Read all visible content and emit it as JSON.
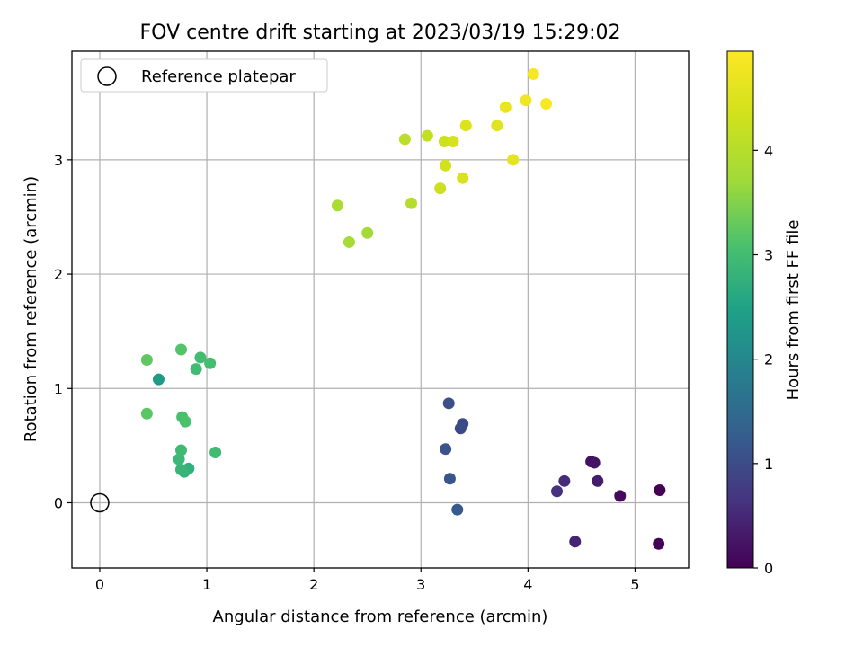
{
  "chart_data": {
    "type": "scatter",
    "title": "FOV centre drift starting at 2023/03/19 15:29:02",
    "xlabel": "Angular distance from reference (arcmin)",
    "ylabel": "Rotation from reference (arcmin)",
    "xlim": [
      -0.26,
      5.5
    ],
    "ylim": [
      -0.57,
      3.95
    ],
    "xticks": [
      0,
      1,
      2,
      3,
      4,
      5
    ],
    "yticks": [
      0,
      1,
      2,
      3
    ],
    "grid": true,
    "legend": {
      "position": "top-left",
      "entries": [
        "Reference platepar"
      ]
    },
    "reference_point": {
      "x": 0,
      "y": 0
    },
    "colorbar": {
      "label": "Hours from first FF file",
      "colormap": "viridis",
      "range": [
        0,
        4.95
      ],
      "ticks": [
        0,
        1,
        2,
        3,
        4
      ]
    },
    "points": [
      {
        "x": 5.23,
        "y": 0.11,
        "h": 0.0
      },
      {
        "x": 5.22,
        "y": -0.36,
        "h": 0.05
      },
      {
        "x": 4.86,
        "y": 0.06,
        "h": 0.12
      },
      {
        "x": 4.59,
        "y": 0.36,
        "h": 0.2
      },
      {
        "x": 4.62,
        "y": 0.35,
        "h": 0.25
      },
      {
        "x": 4.65,
        "y": 0.19,
        "h": 0.35
      },
      {
        "x": 4.44,
        "y": -0.34,
        "h": 0.45
      },
      {
        "x": 4.34,
        "y": 0.19,
        "h": 0.55
      },
      {
        "x": 4.27,
        "y": 0.1,
        "h": 0.62
      },
      {
        "x": 3.37,
        "y": 0.65,
        "h": 0.95
      },
      {
        "x": 3.39,
        "y": 0.69,
        "h": 1.0
      },
      {
        "x": 3.26,
        "y": 0.87,
        "h": 1.05
      },
      {
        "x": 3.23,
        "y": 0.47,
        "h": 1.1
      },
      {
        "x": 3.27,
        "y": 0.21,
        "h": 1.15
      },
      {
        "x": 3.34,
        "y": -0.06,
        "h": 1.2
      },
      {
        "x": 0.55,
        "y": 1.08,
        "h": 2.35
      },
      {
        "x": 0.83,
        "y": 0.3,
        "h": 2.75
      },
      {
        "x": 0.79,
        "y": 0.27,
        "h": 2.8
      },
      {
        "x": 0.76,
        "y": 0.29,
        "h": 2.85
      },
      {
        "x": 0.74,
        "y": 0.38,
        "h": 2.9
      },
      {
        "x": 0.76,
        "y": 0.46,
        "h": 2.95
      },
      {
        "x": 1.08,
        "y": 0.44,
        "h": 2.97
      },
      {
        "x": 0.9,
        "y": 1.17,
        "h": 2.98
      },
      {
        "x": 0.94,
        "y": 1.27,
        "h": 3.0
      },
      {
        "x": 1.03,
        "y": 1.22,
        "h": 3.02
      },
      {
        "x": 0.77,
        "y": 0.75,
        "h": 3.05
      },
      {
        "x": 0.8,
        "y": 0.71,
        "h": 3.1
      },
      {
        "x": 0.76,
        "y": 1.34,
        "h": 3.15
      },
      {
        "x": 0.44,
        "y": 0.78,
        "h": 3.2
      },
      {
        "x": 0.44,
        "y": 1.25,
        "h": 3.25
      },
      {
        "x": 2.5,
        "y": 2.36,
        "h": 3.75
      },
      {
        "x": 2.33,
        "y": 2.28,
        "h": 3.8
      },
      {
        "x": 2.22,
        "y": 2.6,
        "h": 3.85
      },
      {
        "x": 2.91,
        "y": 2.62,
        "h": 4.0
      },
      {
        "x": 2.85,
        "y": 3.18,
        "h": 4.05
      },
      {
        "x": 3.06,
        "y": 3.21,
        "h": 4.15
      },
      {
        "x": 3.18,
        "y": 2.75,
        "h": 4.25
      },
      {
        "x": 3.22,
        "y": 3.16,
        "h": 4.3
      },
      {
        "x": 3.23,
        "y": 2.95,
        "h": 4.35
      },
      {
        "x": 3.3,
        "y": 3.16,
        "h": 4.4
      },
      {
        "x": 3.39,
        "y": 2.84,
        "h": 4.45
      },
      {
        "x": 3.42,
        "y": 3.3,
        "h": 4.5
      },
      {
        "x": 3.71,
        "y": 3.3,
        "h": 4.55
      },
      {
        "x": 3.86,
        "y": 3.0,
        "h": 4.6
      },
      {
        "x": 3.79,
        "y": 3.46,
        "h": 4.7
      },
      {
        "x": 3.98,
        "y": 3.52,
        "h": 4.8
      },
      {
        "x": 4.05,
        "y": 3.75,
        "h": 4.85
      },
      {
        "x": 4.17,
        "y": 3.49,
        "h": 4.9
      }
    ]
  }
}
